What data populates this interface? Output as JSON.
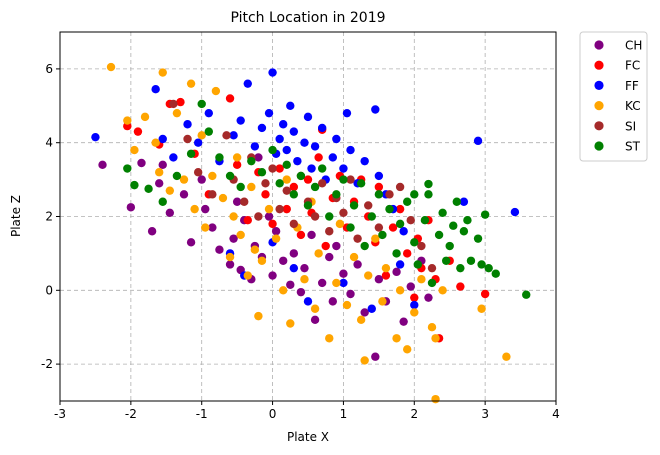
{
  "chart_data": {
    "type": "scatter",
    "title": "Pitch Location in 2019",
    "xlabel": "Plate X",
    "ylabel": "Plate Z",
    "xlim": [
      -3,
      4
    ],
    "ylim": [
      -3,
      7
    ],
    "xticks": [
      "-3",
      "-2",
      "-1",
      "0",
      "1",
      "2",
      "3",
      "4"
    ],
    "yticks": [
      "-2",
      "0",
      "2",
      "4",
      "6"
    ],
    "grid": true,
    "legend_position": "outside-top-right",
    "series": [
      {
        "name": "CH",
        "color": "#800080",
        "points": [
          [
            -2.4,
            3.4
          ],
          [
            -2.0,
            2.25
          ],
          [
            -1.85,
            3.45
          ],
          [
            -1.7,
            1.6
          ],
          [
            -1.6,
            2.9
          ],
          [
            -1.55,
            3.4
          ],
          [
            -1.45,
            2.1
          ],
          [
            -1.25,
            2.6
          ],
          [
            -1.15,
            1.3
          ],
          [
            -1.0,
            3.0
          ],
          [
            -0.95,
            2.2
          ],
          [
            -0.85,
            1.7
          ],
          [
            -0.75,
            1.1
          ],
          [
            -0.6,
            0.7
          ],
          [
            -0.55,
            1.4
          ],
          [
            -0.5,
            2.4
          ],
          [
            -0.45,
            0.55
          ],
          [
            -0.4,
            1.9
          ],
          [
            -0.3,
            0.3
          ],
          [
            -0.25,
            1.2
          ],
          [
            -0.2,
            3.6
          ],
          [
            -0.15,
            0.9
          ],
          [
            -0.05,
            2.0
          ],
          [
            0.0,
            0.4
          ],
          [
            0.05,
            1.6
          ],
          [
            0.15,
            0.8
          ],
          [
            0.25,
            0.15
          ],
          [
            0.3,
            1.0
          ],
          [
            0.4,
            -0.05
          ],
          [
            0.45,
            0.6
          ],
          [
            0.55,
            1.5
          ],
          [
            0.6,
            -0.8
          ],
          [
            0.7,
            0.2
          ],
          [
            0.8,
            0.9
          ],
          [
            0.85,
            -0.3
          ],
          [
            0.9,
            1.2
          ],
          [
            1.0,
            0.45
          ],
          [
            1.1,
            -0.1
          ],
          [
            1.2,
            0.7
          ],
          [
            1.3,
            -0.6
          ],
          [
            1.45,
            -1.8
          ],
          [
            1.5,
            0.3
          ],
          [
            1.6,
            -0.3
          ],
          [
            1.75,
            0.5
          ],
          [
            1.85,
            -0.85
          ],
          [
            1.95,
            0.1
          ],
          [
            2.1,
            0.8
          ],
          [
            2.2,
            -0.2
          ]
        ]
      },
      {
        "name": "FC",
        "color": "#ff0000",
        "points": [
          [
            -2.05,
            4.45
          ],
          [
            -1.9,
            4.3
          ],
          [
            -1.6,
            3.95
          ],
          [
            -1.45,
            5.05
          ],
          [
            -1.3,
            5.1
          ],
          [
            -1.1,
            3.7
          ],
          [
            -0.9,
            2.6
          ],
          [
            -0.6,
            5.2
          ],
          [
            -0.5,
            3.4
          ],
          [
            -0.35,
            1.9
          ],
          [
            -0.2,
            3.2
          ],
          [
            -0.1,
            2.6
          ],
          [
            0.0,
            1.8
          ],
          [
            0.1,
            3.3
          ],
          [
            0.2,
            2.2
          ],
          [
            0.3,
            2.8
          ],
          [
            0.4,
            1.5
          ],
          [
            0.5,
            3.0
          ],
          [
            0.55,
            2.1
          ],
          [
            0.65,
            3.6
          ],
          [
            0.7,
            4.35
          ],
          [
            0.75,
            1.2
          ],
          [
            0.85,
            2.5
          ],
          [
            0.95,
            3.1
          ],
          [
            1.05,
            1.7
          ],
          [
            1.15,
            2.4
          ],
          [
            1.25,
            3.0
          ],
          [
            1.35,
            2.0
          ],
          [
            1.45,
            1.3
          ],
          [
            1.5,
            2.8
          ],
          [
            1.6,
            0.4
          ],
          [
            1.7,
            1.7
          ],
          [
            1.8,
            2.2
          ],
          [
            1.9,
            1.0
          ],
          [
            2.0,
            -0.2
          ],
          [
            2.05,
            1.4
          ],
          [
            2.1,
            0.6
          ],
          [
            2.2,
            1.9
          ],
          [
            2.3,
            0.3
          ],
          [
            2.35,
            -1.3
          ],
          [
            2.5,
            0.8
          ],
          [
            2.65,
            0.1
          ],
          [
            3.0,
            -0.1
          ]
        ]
      },
      {
        "name": "FF",
        "color": "#0000ff",
        "points": [
          [
            -2.5,
            4.15
          ],
          [
            -1.65,
            5.45
          ],
          [
            -1.55,
            4.1
          ],
          [
            -1.4,
            3.6
          ],
          [
            -1.2,
            4.5
          ],
          [
            -1.05,
            4.0
          ],
          [
            -0.9,
            4.8
          ],
          [
            -0.75,
            3.5
          ],
          [
            -0.55,
            4.2
          ],
          [
            -0.45,
            4.6
          ],
          [
            -0.35,
            5.6
          ],
          [
            -0.25,
            3.9
          ],
          [
            -0.15,
            4.4
          ],
          [
            -0.05,
            4.8
          ],
          [
            0.0,
            5.9
          ],
          [
            0.05,
            3.7
          ],
          [
            0.1,
            4.1
          ],
          [
            0.15,
            4.5
          ],
          [
            0.2,
            3.8
          ],
          [
            0.25,
            5.0
          ],
          [
            0.3,
            4.3
          ],
          [
            0.35,
            3.5
          ],
          [
            0.45,
            4.0
          ],
          [
            0.5,
            4.7
          ],
          [
            0.55,
            3.3
          ],
          [
            0.6,
            3.9
          ],
          [
            0.7,
            4.4
          ],
          [
            0.75,
            3.0
          ],
          [
            0.85,
            3.6
          ],
          [
            0.9,
            4.1
          ],
          [
            1.0,
            3.3
          ],
          [
            1.05,
            4.8
          ],
          [
            1.1,
            3.8
          ],
          [
            1.2,
            2.9
          ],
          [
            1.3,
            3.5
          ],
          [
            1.45,
            4.9
          ],
          [
            1.5,
            3.1
          ],
          [
            1.6,
            2.6
          ],
          [
            1.7,
            2.2
          ],
          [
            1.85,
            1.6
          ],
          [
            -0.6,
            1.0
          ],
          [
            -0.4,
            0.4
          ],
          [
            0.0,
            1.3
          ],
          [
            0.3,
            0.6
          ],
          [
            0.5,
            -0.3
          ],
          [
            1.0,
            0.2
          ],
          [
            1.4,
            -0.5
          ],
          [
            1.8,
            0.7
          ],
          [
            2.0,
            -0.4
          ],
          [
            2.9,
            4.05
          ],
          [
            3.42,
            2.12
          ],
          [
            2.7,
            2.4
          ]
        ]
      },
      {
        "name": "KC",
        "color": "#ffa500",
        "points": [
          [
            -2.28,
            6.05
          ],
          [
            -2.05,
            4.6
          ],
          [
            -1.95,
            3.8
          ],
          [
            -1.8,
            4.7
          ],
          [
            -1.65,
            4.0
          ],
          [
            -1.55,
            5.9
          ],
          [
            -1.6,
            3.2
          ],
          [
            -1.45,
            2.7
          ],
          [
            -1.35,
            4.8
          ],
          [
            -1.25,
            3.0
          ],
          [
            -1.1,
            2.2
          ],
          [
            -1.15,
            5.6
          ],
          [
            -1.0,
            4.2
          ],
          [
            -0.95,
            1.7
          ],
          [
            -0.85,
            3.1
          ],
          [
            -0.8,
            5.4
          ],
          [
            -0.7,
            2.5
          ],
          [
            -0.6,
            0.9
          ],
          [
            -0.55,
            2.0
          ],
          [
            -0.5,
            3.6
          ],
          [
            -0.45,
            1.5
          ],
          [
            -0.35,
            0.4
          ],
          [
            -0.3,
            2.8
          ],
          [
            -0.25,
            1.1
          ],
          [
            -0.2,
            -0.7
          ],
          [
            -0.15,
            0.8
          ],
          [
            -0.05,
            2.2
          ],
          [
            0.05,
            1.4
          ],
          [
            0.15,
            0.0
          ],
          [
            0.2,
            3.0
          ],
          [
            0.25,
            -0.9
          ],
          [
            0.35,
            1.7
          ],
          [
            0.45,
            0.3
          ],
          [
            0.55,
            2.4
          ],
          [
            0.6,
            -0.5
          ],
          [
            0.65,
            1.0
          ],
          [
            0.8,
            -1.3
          ],
          [
            0.9,
            0.2
          ],
          [
            0.95,
            1.8
          ],
          [
            1.05,
            -0.4
          ],
          [
            1.15,
            0.9
          ],
          [
            1.25,
            -0.8
          ],
          [
            1.3,
            -1.9
          ],
          [
            1.35,
            0.4
          ],
          [
            1.45,
            1.4
          ],
          [
            1.55,
            -0.3
          ],
          [
            1.6,
            0.6
          ],
          [
            1.75,
            -1.3
          ],
          [
            1.8,
            0.0
          ],
          [
            1.9,
            -1.6
          ],
          [
            2.0,
            -0.6
          ],
          [
            2.1,
            0.3
          ],
          [
            2.25,
            -1.0
          ],
          [
            2.3,
            -1.3
          ],
          [
            2.4,
            0.0
          ],
          [
            2.3,
            -2.95
          ],
          [
            3.3,
            -1.8
          ],
          [
            2.95,
            -0.5
          ]
        ]
      },
      {
        "name": "SI",
        "color": "#a52a2a",
        "points": [
          [
            -1.4,
            5.05
          ],
          [
            -1.2,
            4.1
          ],
          [
            -1.05,
            3.2
          ],
          [
            -0.85,
            2.6
          ],
          [
            -0.65,
            4.2
          ],
          [
            -0.55,
            3.0
          ],
          [
            -0.4,
            2.4
          ],
          [
            -0.3,
            3.6
          ],
          [
            -0.2,
            2.0
          ],
          [
            -0.1,
            2.9
          ],
          [
            0.0,
            3.3
          ],
          [
            0.1,
            2.2
          ],
          [
            0.2,
            2.7
          ],
          [
            0.3,
            1.8
          ],
          [
            0.4,
            3.1
          ],
          [
            0.5,
            2.4
          ],
          [
            0.6,
            2.0
          ],
          [
            0.7,
            2.9
          ],
          [
            0.8,
            1.6
          ],
          [
            0.9,
            2.5
          ],
          [
            1.0,
            2.1
          ],
          [
            1.1,
            3.0
          ],
          [
            1.2,
            1.4
          ],
          [
            1.35,
            2.3
          ],
          [
            1.5,
            1.7
          ],
          [
            1.65,
            2.6
          ],
          [
            1.8,
            2.8
          ],
          [
            1.95,
            1.9
          ],
          [
            2.1,
            1.2
          ],
          [
            2.25,
            0.6
          ]
        ]
      },
      {
        "name": "ST",
        "color": "#008000",
        "points": [
          [
            -2.05,
            3.3
          ],
          [
            -1.95,
            2.85
          ],
          [
            -1.75,
            2.75
          ],
          [
            -1.55,
            2.4
          ],
          [
            -1.35,
            3.1
          ],
          [
            -1.15,
            3.7
          ],
          [
            -1.0,
            5.05
          ],
          [
            -0.9,
            4.3
          ],
          [
            -0.75,
            3.6
          ],
          [
            -0.6,
            3.1
          ],
          [
            -0.45,
            2.8
          ],
          [
            -0.3,
            3.5
          ],
          [
            -0.15,
            3.2
          ],
          [
            0.0,
            3.8
          ],
          [
            0.1,
            2.9
          ],
          [
            0.2,
            3.4
          ],
          [
            0.3,
            2.6
          ],
          [
            0.4,
            3.1
          ],
          [
            0.5,
            2.3
          ],
          [
            0.6,
            2.8
          ],
          [
            0.7,
            3.3
          ],
          [
            0.8,
            2.0
          ],
          [
            0.9,
            2.6
          ],
          [
            1.0,
            3.0
          ],
          [
            1.1,
            1.7
          ],
          [
            1.15,
            2.3
          ],
          [
            1.25,
            2.9
          ],
          [
            1.3,
            1.2
          ],
          [
            1.4,
            2.0
          ],
          [
            1.5,
            2.6
          ],
          [
            1.55,
            1.5
          ],
          [
            1.65,
            2.2
          ],
          [
            1.75,
            1.0
          ],
          [
            1.8,
            1.8
          ],
          [
            1.9,
            2.4
          ],
          [
            2.0,
            1.3
          ],
          [
            2.05,
            0.7
          ],
          [
            2.15,
            1.9
          ],
          [
            2.2,
            2.6
          ],
          [
            2.25,
            0.2
          ],
          [
            2.35,
            1.5
          ],
          [
            2.4,
            2.1
          ],
          [
            2.45,
            0.8
          ],
          [
            2.5,
            1.2
          ],
          [
            2.55,
            1.75
          ],
          [
            2.6,
            2.4
          ],
          [
            2.65,
            0.6
          ],
          [
            2.7,
            1.6
          ],
          [
            2.75,
            1.9
          ],
          [
            2.8,
            0.8
          ],
          [
            2.9,
            1.4
          ],
          [
            2.95,
            0.7
          ],
          [
            3.0,
            2.05
          ],
          [
            3.05,
            0.6
          ],
          [
            3.15,
            0.45
          ],
          [
            3.58,
            -0.12
          ],
          [
            2.2,
            2.88
          ],
          [
            2.0,
            2.6
          ]
        ]
      }
    ]
  }
}
